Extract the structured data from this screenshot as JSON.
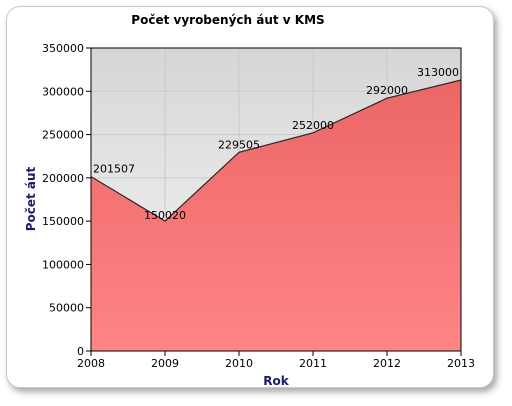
{
  "chart_data": {
    "type": "area",
    "title": "Počet vyrobených áut v KMS",
    "xlabel": "Rok",
    "ylabel": "Počet áut",
    "x": [
      "2008",
      "2009",
      "2010",
      "2011",
      "2012",
      "2013"
    ],
    "series": [
      {
        "values": [
          201507,
          150020,
          229505,
          252000,
          292000,
          313000
        ]
      }
    ],
    "data_labels": [
      "201507",
      "150020",
      "229505",
      "252000",
      "292000",
      "313000"
    ],
    "y_ticks": [
      "0",
      "50000",
      "100000",
      "150000",
      "200000",
      "250000",
      "300000",
      "350000"
    ],
    "ylim": [
      0,
      350000
    ],
    "grid": true,
    "legend": "none",
    "colors": {
      "fill": "#f06b6b",
      "line": "#2a2a2a",
      "plot_bg": "#e4e4e4",
      "grid": "#c9c9c9"
    }
  }
}
